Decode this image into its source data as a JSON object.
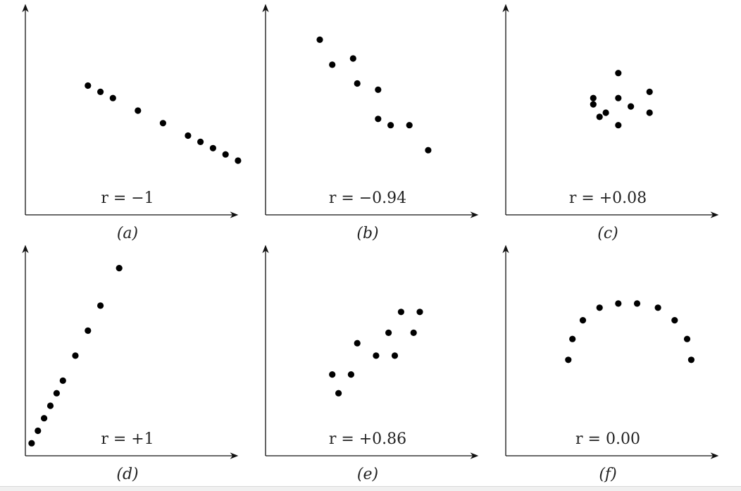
{
  "chart_data": [
    {
      "type": "scatter",
      "caption": "(a)",
      "annotation": "r = −1",
      "points": [
        [
          3.0,
          6.2
        ],
        [
          3.6,
          5.9
        ],
        [
          4.2,
          5.6
        ],
        [
          5.4,
          5.0
        ],
        [
          6.6,
          4.4
        ],
        [
          7.8,
          3.8
        ],
        [
          8.4,
          3.5
        ],
        [
          9.0,
          3.2
        ],
        [
          9.6,
          2.9
        ],
        [
          10.2,
          2.6
        ]
      ]
    },
    {
      "type": "scatter",
      "caption": "(b)",
      "annotation": "r = −0.94",
      "points": [
        [
          2.6,
          8.4
        ],
        [
          3.2,
          7.2
        ],
        [
          4.2,
          7.5
        ],
        [
          4.4,
          6.3
        ],
        [
          5.4,
          6.0
        ],
        [
          5.4,
          4.6
        ],
        [
          6.0,
          4.3
        ],
        [
          6.9,
          4.3
        ],
        [
          7.8,
          3.1
        ]
      ]
    },
    {
      "type": "scatter",
      "caption": "(c)",
      "annotation": "r = +0.08",
      "points": [
        [
          4.2,
          5.6
        ],
        [
          4.2,
          5.3
        ],
        [
          4.5,
          4.7
        ],
        [
          4.8,
          4.9
        ],
        [
          5.4,
          6.8
        ],
        [
          5.4,
          5.6
        ],
        [
          5.4,
          4.3
        ],
        [
          6.0,
          5.2
        ],
        [
          6.9,
          5.9
        ],
        [
          6.9,
          4.9
        ]
      ]
    },
    {
      "type": "scatter",
      "caption": "(d)",
      "annotation": "r = +1",
      "points": [
        [
          0.3,
          0.6
        ],
        [
          0.6,
          1.2
        ],
        [
          0.9,
          1.8
        ],
        [
          1.2,
          2.4
        ],
        [
          1.5,
          3.0
        ],
        [
          1.8,
          3.6
        ],
        [
          2.4,
          4.8
        ],
        [
          3.0,
          6.0
        ],
        [
          3.6,
          7.2
        ],
        [
          4.5,
          9.0
        ]
      ]
    },
    {
      "type": "scatter",
      "caption": "(e)",
      "annotation": "r = +0.86",
      "points": [
        [
          3.2,
          3.9
        ],
        [
          3.5,
          3.0
        ],
        [
          4.1,
          3.9
        ],
        [
          4.4,
          5.4
        ],
        [
          5.3,
          4.8
        ],
        [
          5.9,
          5.9
        ],
        [
          6.2,
          4.8
        ],
        [
          6.5,
          6.9
        ],
        [
          7.1,
          5.9
        ],
        [
          7.4,
          6.9
        ]
      ]
    },
    {
      "type": "scatter",
      "caption": "(f)",
      "annotation": "r = 0.00",
      "points": [
        [
          3.0,
          4.6
        ],
        [
          3.2,
          5.6
        ],
        [
          3.7,
          6.5
        ],
        [
          4.5,
          7.1
        ],
        [
          5.4,
          7.3
        ],
        [
          6.3,
          7.3
        ],
        [
          7.3,
          7.1
        ],
        [
          8.1,
          6.5
        ],
        [
          8.7,
          5.6
        ],
        [
          8.9,
          4.6
        ]
      ]
    }
  ]
}
